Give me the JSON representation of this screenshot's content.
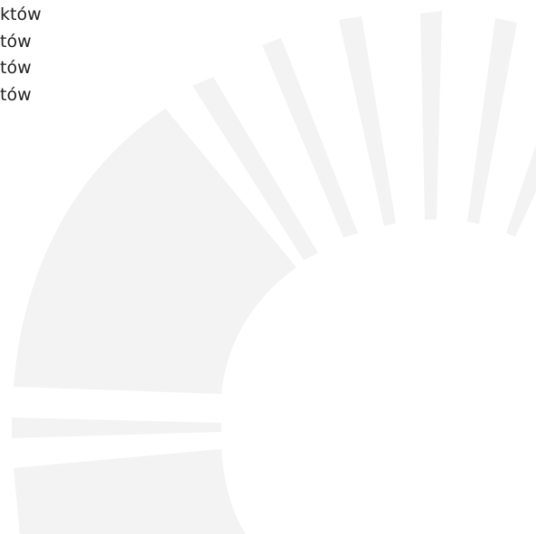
{
  "lines": [
    "któw",
    "tów",
    "tów",
    "tów"
  ]
}
